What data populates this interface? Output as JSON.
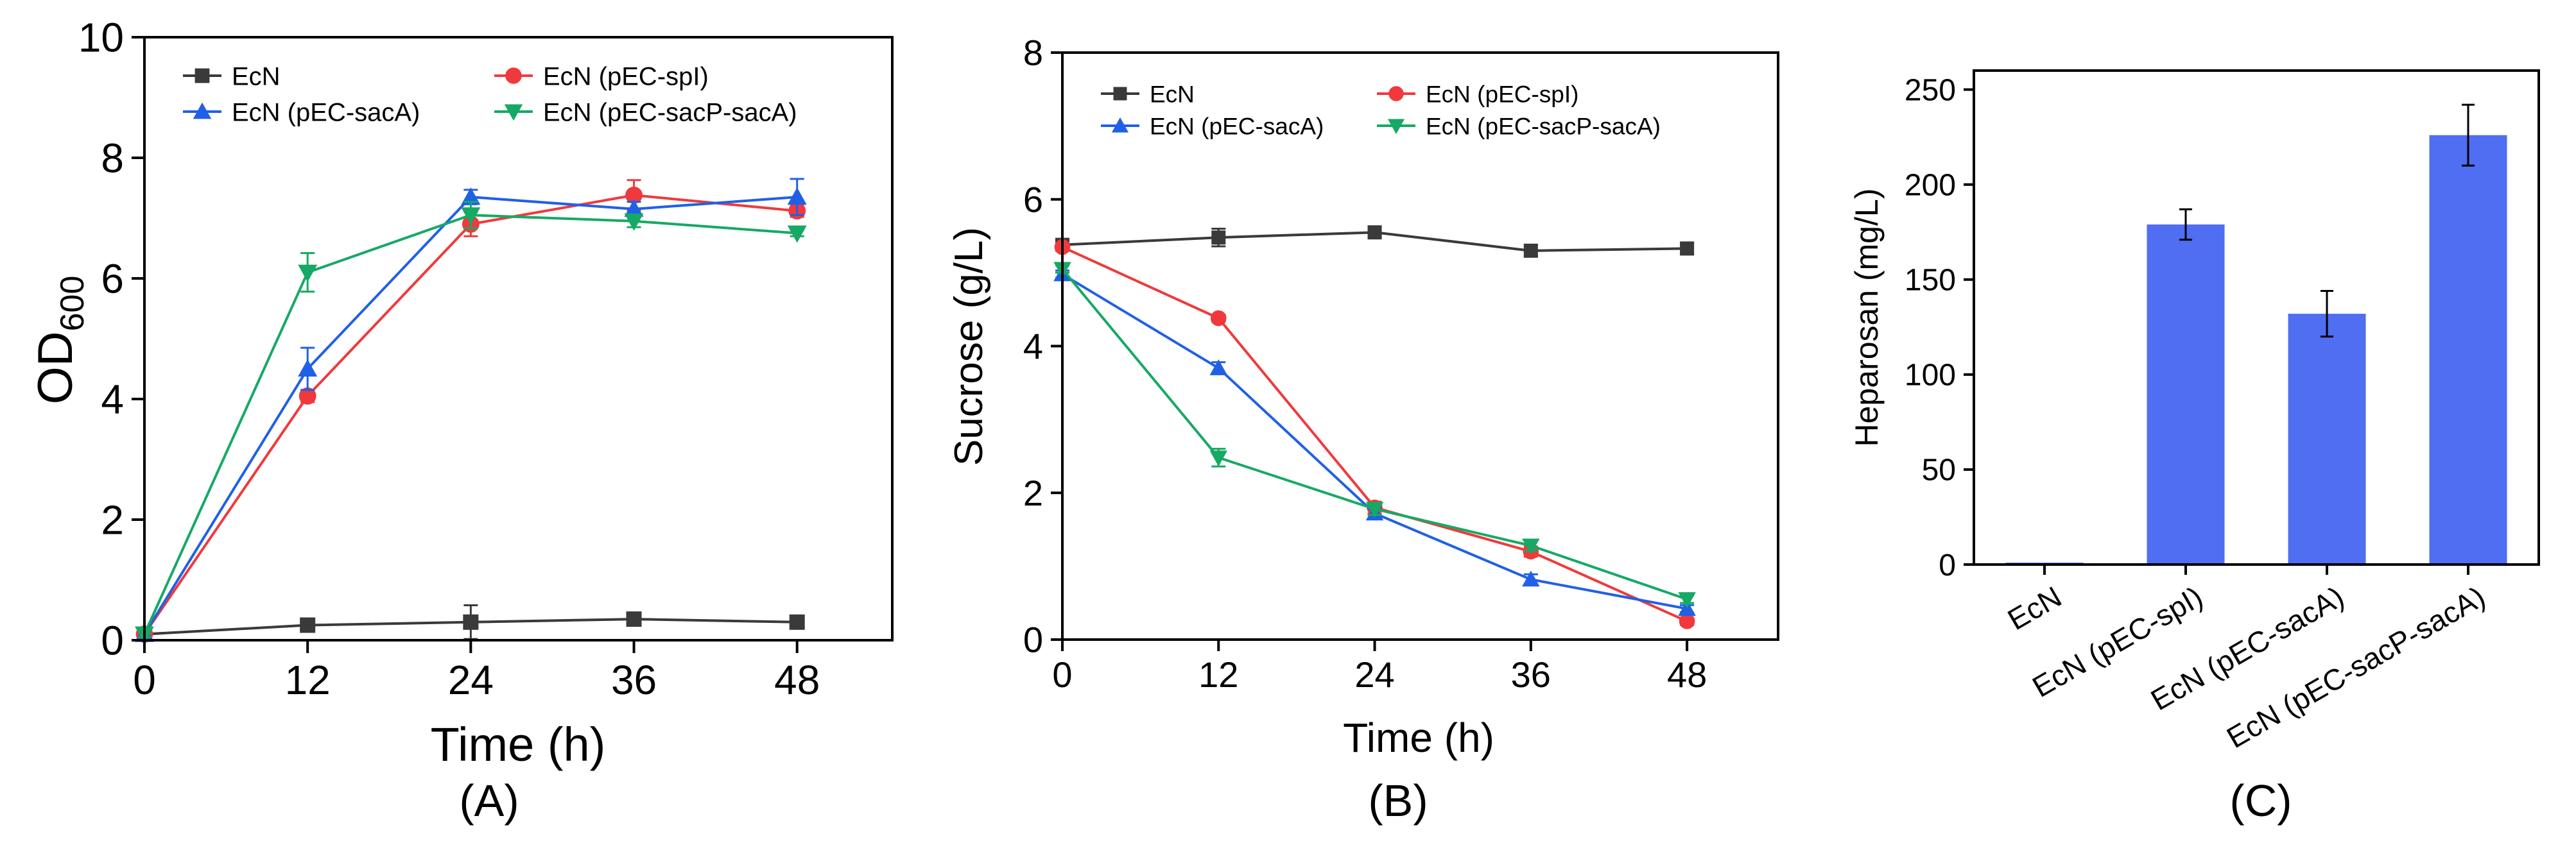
{
  "colors": {
    "EcN": "#3a3a3a",
    "spI": "#f0393c",
    "sacA": "#2060e6",
    "sacPsacA": "#16a965",
    "bar": "#4f6ef2",
    "axis": "#000000"
  },
  "chart_data": [
    {
      "id": "A",
      "type": "line",
      "panel_label": "(A)",
      "xlabel": "Time (h)",
      "ylabel_main": "OD",
      "ylabel_sub": "600",
      "xlim": [
        0,
        55
      ],
      "ylim": [
        0,
        10
      ],
      "xticks": [
        0,
        12,
        24,
        36,
        48
      ],
      "yticks": [
        0,
        2,
        4,
        6,
        8,
        10
      ],
      "x": [
        0,
        12,
        24,
        36,
        48
      ],
      "series": [
        {
          "name": "EcN",
          "color": "#3a3a3a",
          "marker": "square",
          "values": [
            0.1,
            0.25,
            0.3,
            0.35,
            0.3
          ],
          "errors": [
            0.05,
            0.05,
            0.28,
            0.05,
            0.05
          ]
        },
        {
          "name": "EcN (pEC-spI)",
          "color": "#f0393c",
          "marker": "circle",
          "values": [
            0.1,
            4.05,
            6.9,
            7.38,
            7.12
          ],
          "errors": [
            0.05,
            0.1,
            0.2,
            0.25,
            0.1
          ]
        },
        {
          "name": "EcN (pEC-sacA)",
          "color": "#2060e6",
          "marker": "triangle-up",
          "values": [
            0.1,
            4.5,
            7.35,
            7.15,
            7.35
          ],
          "errors": [
            0.05,
            0.35,
            0.12,
            0.12,
            0.3
          ]
        },
        {
          "name": "EcN (pEC-sacP-sacA)",
          "color": "#16a965",
          "marker": "triangle-down",
          "values": [
            0.1,
            6.1,
            7.05,
            6.95,
            6.75
          ],
          "errors": [
            0.05,
            0.32,
            0.22,
            0.1,
            0.05
          ]
        }
      ],
      "legend": "top, two columns"
    },
    {
      "id": "B",
      "type": "line",
      "panel_label": "(B)",
      "xlabel": "Time (h)",
      "ylabel": "Sucrose (g/L)",
      "xlim": [
        0,
        55
      ],
      "ylim": [
        0,
        8
      ],
      "xticks": [
        0,
        12,
        24,
        36,
        48
      ],
      "yticks": [
        0,
        2,
        4,
        6,
        8
      ],
      "x": [
        0,
        12,
        24,
        36,
        48
      ],
      "series": [
        {
          "name": "EcN",
          "color": "#3a3a3a",
          "marker": "square",
          "values": [
            5.38,
            5.48,
            5.55,
            5.3,
            5.33
          ],
          "errors": [
            0.05,
            0.12,
            0.08,
            0.07,
            0.07
          ]
        },
        {
          "name": "EcN (pEC-spI)",
          "color": "#f0393c",
          "marker": "circle",
          "values": [
            5.35,
            4.38,
            1.8,
            1.2,
            0.25
          ],
          "errors": [
            0.05,
            0.05,
            0.08,
            0.07,
            0.05
          ]
        },
        {
          "name": "EcN (pEC-sacA)",
          "color": "#2060e6",
          "marker": "triangle-up",
          "values": [
            4.98,
            3.7,
            1.72,
            0.82,
            0.42
          ],
          "errors": [
            0.05,
            0.08,
            0.07,
            0.07,
            0.05
          ]
        },
        {
          "name": "EcN (pEC-sacP-sacA)",
          "color": "#16a965",
          "marker": "triangle-down",
          "values": [
            5.05,
            2.48,
            1.78,
            1.28,
            0.55
          ],
          "errors": [
            0.05,
            0.12,
            0.08,
            0.07,
            0.05
          ]
        }
      ],
      "legend": "top, two columns"
    },
    {
      "id": "C",
      "type": "bar",
      "panel_label": "(C)",
      "ylabel": "Heparosan (mg/L)",
      "ylim": [
        0,
        260
      ],
      "yticks": [
        0,
        50,
        100,
        150,
        200,
        250
      ],
      "categories": [
        "EcN",
        "EcN (pEC-spI)",
        "EcN (pEC-sacA)",
        "EcN (pEC-sacP-sacA)"
      ],
      "values": [
        1,
        179,
        132,
        226
      ],
      "errors": [
        0,
        8,
        12,
        16
      ],
      "color": "#4f6ef2"
    }
  ]
}
